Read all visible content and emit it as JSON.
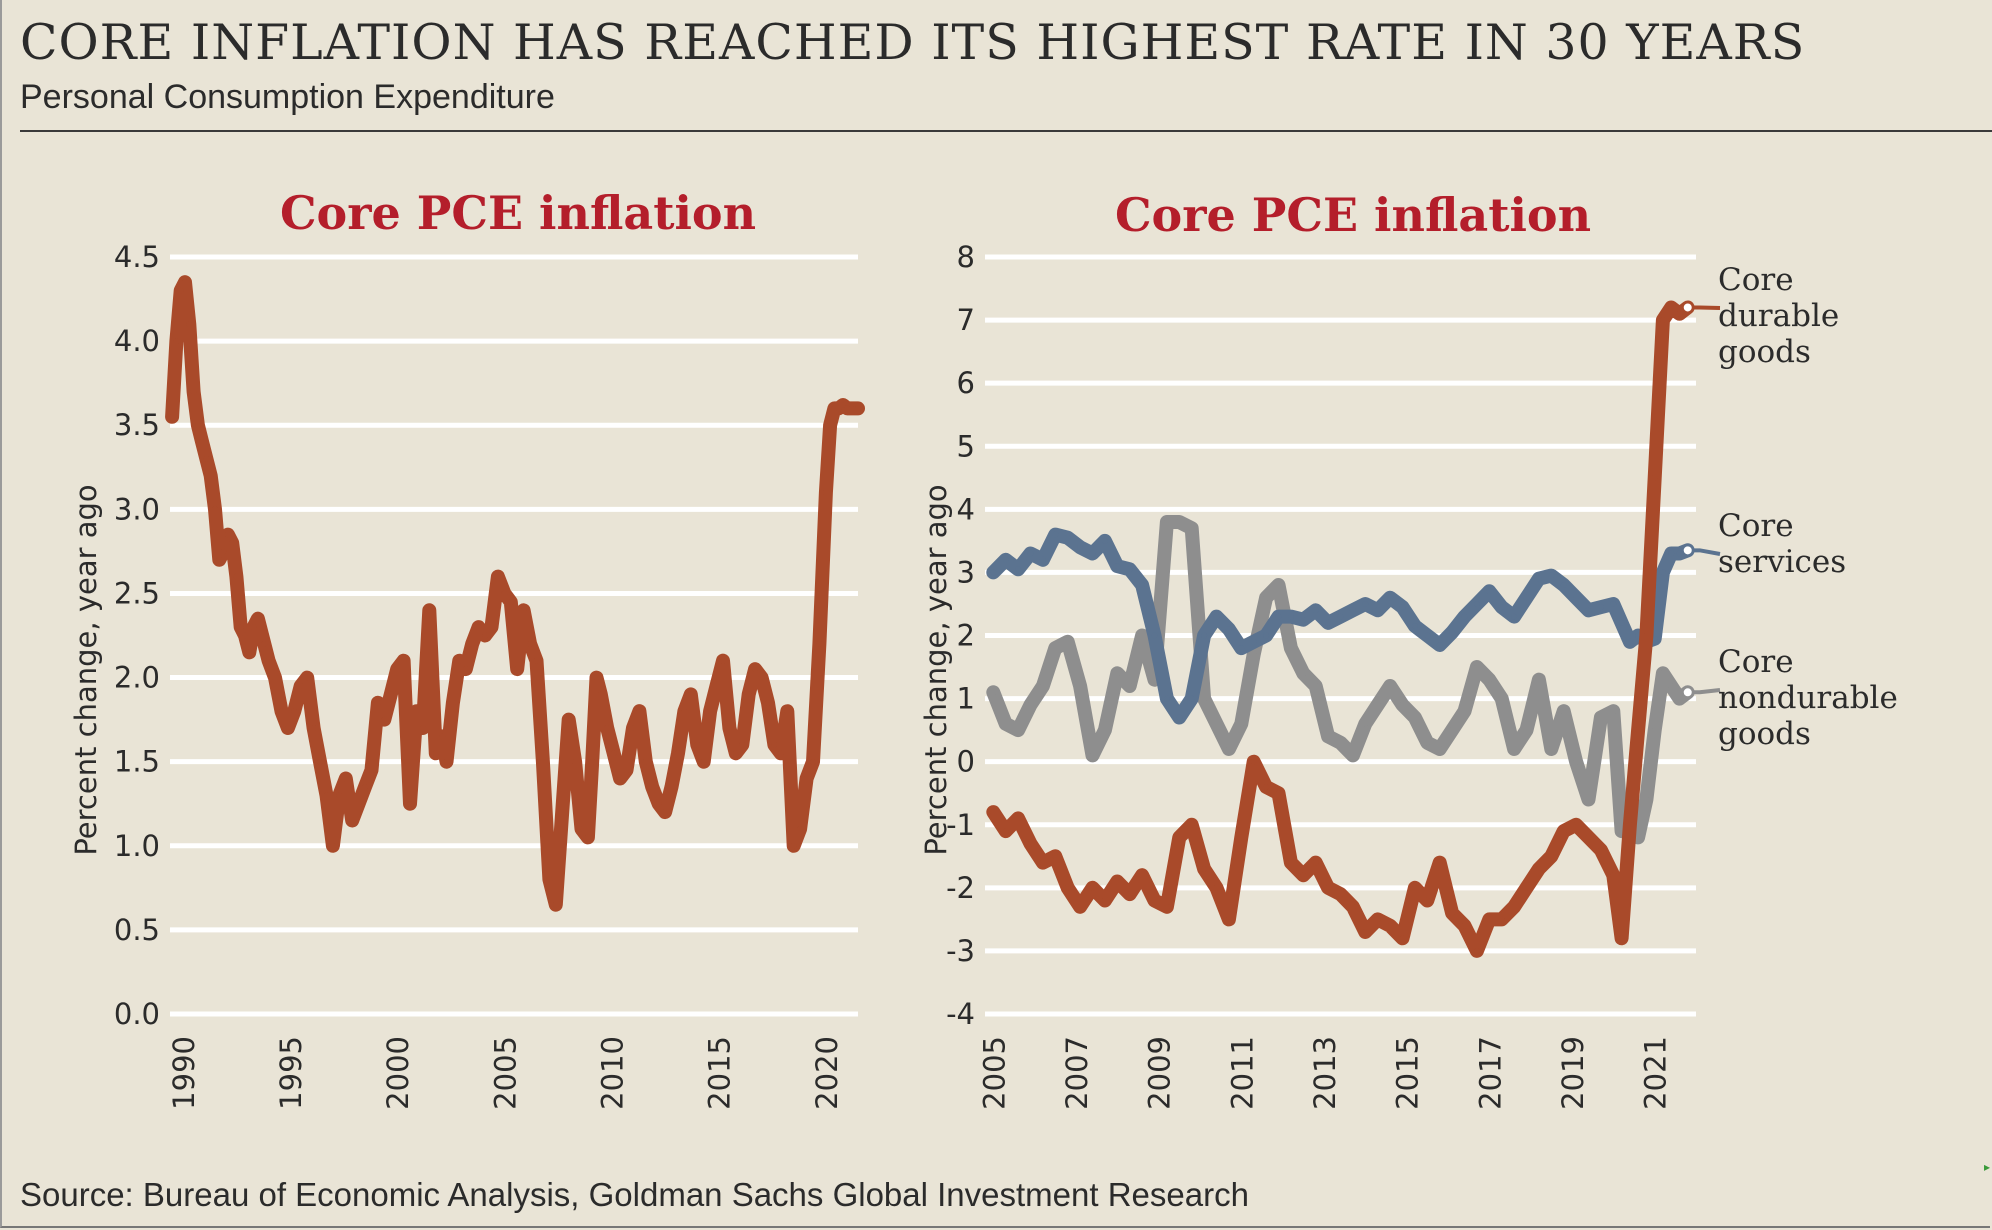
{
  "header": {
    "title": "CORE INFLATION HAS REACHED ITS HIGHEST RATE IN 30 YEARS",
    "subtitle": "Personal Consumption Expenditure"
  },
  "footer": {
    "source": "Source: Bureau of Economic Analysis, Goldman Sachs Global Investment Research"
  },
  "colors": {
    "background": "#e9e4d6",
    "panel_title": "#b41e2b",
    "durable": "#a94a2a",
    "services": "#5b7390",
    "nondurable": "#8e8e8e",
    "gridline": "#ffffff"
  },
  "chart_data": [
    {
      "type": "line",
      "title": "Core PCE inflation",
      "ylabel": "Percent change, year ago",
      "xlabel": "",
      "xlim": [
        1989.4,
        2021.5
      ],
      "ylim": [
        0,
        4.5
      ],
      "yticks": [
        "0.0",
        "0.5",
        "1.0",
        "1.5",
        "2.0",
        "2.5",
        "3.0",
        "3.5",
        "4.0",
        "4.5"
      ],
      "xticks": [
        "1990",
        "1995",
        "2000",
        "2005",
        "2010",
        "2015",
        "2020"
      ],
      "grid": true,
      "series": [
        {
          "name": "Core PCE",
          "color": "#a94a2a",
          "x": [
            1989.5,
            1989.7,
            1989.9,
            1990.1,
            1990.3,
            1990.5,
            1990.7,
            1990.9,
            1991.1,
            1991.3,
            1991.5,
            1991.7,
            1991.9,
            1992.1,
            1992.3,
            1992.5,
            1992.7,
            1992.9,
            1993.1,
            1993.3,
            1993.5,
            1993.8,
            1994.0,
            1994.3,
            1994.6,
            1994.9,
            1995.2,
            1995.5,
            1995.8,
            1996.1,
            1996.4,
            1996.7,
            1997.0,
            1997.3,
            1997.6,
            1997.9,
            1998.2,
            1998.5,
            1998.8,
            1999.1,
            1999.4,
            1999.7,
            2000.0,
            2000.3,
            2000.6,
            2000.9,
            2001.2,
            2001.5,
            2001.8,
            2002.1,
            2002.3,
            2002.6,
            2002.9,
            2003.2,
            2003.5,
            2003.8,
            2004.1,
            2004.4,
            2004.7,
            2005.0,
            2005.3,
            2005.6,
            2005.9,
            2006.2,
            2006.5,
            2006.8,
            2007.1,
            2007.4,
            2007.7,
            2008.0,
            2008.3,
            2008.6,
            2008.9,
            2009.1,
            2009.3,
            2009.5,
            2009.8,
            2010.1,
            2010.4,
            2010.7,
            2011.0,
            2011.3,
            2011.6,
            2011.9,
            2012.2,
            2012.5,
            2012.8,
            2013.1,
            2013.4,
            2013.7,
            2014.0,
            2014.3,
            2014.6,
            2014.9,
            2015.2,
            2015.5,
            2015.8,
            2016.1,
            2016.4,
            2016.7,
            2017.0,
            2017.3,
            2017.6,
            2017.9,
            2018.2,
            2018.5,
            2018.8,
            2019.1,
            2019.4,
            2019.7,
            2020.0,
            2020.2,
            2020.4,
            2020.6,
            2020.8,
            2021.0,
            2021.2,
            2021.4,
            2021.5
          ],
          "values": [
            3.55,
            4.0,
            4.3,
            4.35,
            4.1,
            3.7,
            3.5,
            3.4,
            3.3,
            3.2,
            3.0,
            2.7,
            2.75,
            2.85,
            2.8,
            2.6,
            2.3,
            2.25,
            2.15,
            2.3,
            2.35,
            2.2,
            2.1,
            2.0,
            1.8,
            1.7,
            1.8,
            1.95,
            2.0,
            1.7,
            1.5,
            1.3,
            1.0,
            1.3,
            1.4,
            1.15,
            1.25,
            1.35,
            1.45,
            1.85,
            1.75,
            1.9,
            2.05,
            2.1,
            1.25,
            1.8,
            1.7,
            2.4,
            1.55,
            1.65,
            1.5,
            1.85,
            2.1,
            2.05,
            2.2,
            2.3,
            2.25,
            2.3,
            2.6,
            2.5,
            2.45,
            2.05,
            2.4,
            2.2,
            2.1,
            1.5,
            0.8,
            0.65,
            1.2,
            1.75,
            1.5,
            1.1,
            1.05,
            1.5,
            2.0,
            1.9,
            1.7,
            1.55,
            1.4,
            1.45,
            1.7,
            1.8,
            1.5,
            1.35,
            1.25,
            1.2,
            1.35,
            1.55,
            1.8,
            1.9,
            1.6,
            1.5,
            1.8,
            1.95,
            2.1,
            1.7,
            1.55,
            1.6,
            1.9,
            2.05,
            2.0,
            1.85,
            1.6,
            1.55,
            1.8,
            1.0,
            1.1,
            1.4,
            1.5,
            2.2,
            3.1,
            3.5,
            3.6,
            3.6,
            3.62,
            3.6,
            3.6,
            3.6,
            3.6
          ],
          "values_note": "approximate readings"
        }
      ]
    },
    {
      "type": "line",
      "title": "Core PCE inflation",
      "ylabel": "Percent change, year ago",
      "xlabel": "",
      "xlim": [
        2004.8,
        2022.0
      ],
      "ylim": [
        -4,
        8
      ],
      "yticks": [
        "-4",
        "-3",
        "-2",
        "-1",
        "0",
        "1",
        "2",
        "3",
        "4",
        "5",
        "6",
        "7",
        "8"
      ],
      "xticks": [
        "2005",
        "2007",
        "2009",
        "2011",
        "2013",
        "2015",
        "2017",
        "2019",
        "2021"
      ],
      "grid": true,
      "series": [
        {
          "name": "Core durable goods",
          "legend": [
            "Core",
            "durable",
            "goods"
          ],
          "color": "#a94a2a",
          "x": [
            2005.0,
            2005.3,
            2005.6,
            2005.9,
            2006.2,
            2006.5,
            2006.8,
            2007.1,
            2007.4,
            2007.7,
            2008.0,
            2008.3,
            2008.6,
            2008.9,
            2009.2,
            2009.5,
            2009.8,
            2010.1,
            2010.4,
            2010.7,
            2011.0,
            2011.3,
            2011.6,
            2011.9,
            2012.2,
            2012.5,
            2012.8,
            2013.1,
            2013.4,
            2013.7,
            2014.0,
            2014.3,
            2014.6,
            2014.9,
            2015.2,
            2015.5,
            2015.8,
            2016.1,
            2016.4,
            2016.7,
            2017.0,
            2017.3,
            2017.6,
            2017.9,
            2018.2,
            2018.5,
            2018.8,
            2019.1,
            2019.4,
            2019.7,
            2020.0,
            2020.2,
            2020.4,
            2020.6,
            2020.8,
            2021.0,
            2021.2,
            2021.4,
            2021.6,
            2021.8
          ],
          "values": [
            -0.8,
            -1.1,
            -0.9,
            -1.3,
            -1.6,
            -1.5,
            -2.0,
            -2.3,
            -2.0,
            -2.2,
            -1.9,
            -2.1,
            -1.8,
            -2.2,
            -2.3,
            -1.2,
            -1.0,
            -1.7,
            -2.0,
            -2.5,
            -1.2,
            0.0,
            -0.4,
            -0.5,
            -1.6,
            -1.8,
            -1.6,
            -2.0,
            -2.1,
            -2.3,
            -2.7,
            -2.5,
            -2.6,
            -2.8,
            -2.0,
            -2.2,
            -1.6,
            -2.4,
            -2.6,
            -3.0,
            -2.5,
            -2.5,
            -2.3,
            -2.0,
            -1.7,
            -1.5,
            -1.1,
            -1.0,
            -1.2,
            -1.4,
            -1.8,
            -2.8,
            -1.0,
            0.5,
            2.0,
            4.5,
            7.0,
            7.2,
            7.1,
            7.2
          ],
          "values_note": "approximate readings"
        },
        {
          "name": "Core services",
          "legend": [
            "Core",
            "services"
          ],
          "color": "#5b7390",
          "x": [
            2005.0,
            2005.3,
            2005.6,
            2005.9,
            2006.2,
            2006.5,
            2006.8,
            2007.1,
            2007.4,
            2007.7,
            2008.0,
            2008.3,
            2008.6,
            2008.9,
            2009.2,
            2009.5,
            2009.8,
            2010.1,
            2010.4,
            2010.7,
            2011.0,
            2011.3,
            2011.6,
            2011.9,
            2012.2,
            2012.5,
            2012.8,
            2013.1,
            2013.4,
            2013.7,
            2014.0,
            2014.3,
            2014.6,
            2014.9,
            2015.2,
            2015.5,
            2015.8,
            2016.1,
            2016.4,
            2016.7,
            2017.0,
            2017.3,
            2017.6,
            2017.9,
            2018.2,
            2018.5,
            2018.8,
            2019.1,
            2019.4,
            2019.7,
            2020.0,
            2020.2,
            2020.4,
            2020.6,
            2020.8,
            2021.0,
            2021.2,
            2021.4,
            2021.6,
            2021.8
          ],
          "values": [
            3.0,
            3.2,
            3.05,
            3.3,
            3.2,
            3.6,
            3.55,
            3.4,
            3.3,
            3.5,
            3.1,
            3.05,
            2.8,
            2.0,
            1.0,
            0.7,
            1.0,
            2.0,
            2.3,
            2.1,
            1.8,
            1.9,
            2.0,
            2.3,
            2.3,
            2.25,
            2.4,
            2.2,
            2.3,
            2.4,
            2.5,
            2.4,
            2.6,
            2.45,
            2.15,
            2.0,
            1.85,
            2.05,
            2.3,
            2.5,
            2.7,
            2.45,
            2.3,
            2.6,
            2.9,
            2.95,
            2.8,
            2.6,
            2.4,
            2.45,
            2.5,
            2.2,
            1.9,
            2.0,
            1.9,
            1.95,
            3.0,
            3.3,
            3.3,
            3.35
          ],
          "values_note": "approximate readings"
        },
        {
          "name": "Core nondurable goods",
          "legend": [
            "Core",
            "nondurable",
            "goods"
          ],
          "color": "#8e8e8e",
          "x": [
            2005.0,
            2005.3,
            2005.6,
            2005.9,
            2006.2,
            2006.5,
            2006.8,
            2007.1,
            2007.4,
            2007.7,
            2008.0,
            2008.3,
            2008.6,
            2008.9,
            2009.2,
            2009.5,
            2009.8,
            2010.1,
            2010.4,
            2010.7,
            2011.0,
            2011.3,
            2011.6,
            2011.9,
            2012.2,
            2012.5,
            2012.8,
            2013.1,
            2013.4,
            2013.7,
            2014.0,
            2014.3,
            2014.6,
            2014.9,
            2015.2,
            2015.5,
            2015.8,
            2016.1,
            2016.4,
            2016.7,
            2017.0,
            2017.3,
            2017.6,
            2017.9,
            2018.2,
            2018.5,
            2018.8,
            2019.1,
            2019.4,
            2019.7,
            2020.0,
            2020.2,
            2020.4,
            2020.6,
            2020.8,
            2021.0,
            2021.2,
            2021.4,
            2021.6,
            2021.8
          ],
          "values": [
            1.1,
            0.6,
            0.5,
            0.9,
            1.2,
            1.8,
            1.9,
            1.2,
            0.1,
            0.5,
            1.4,
            1.2,
            2.0,
            1.3,
            3.8,
            3.8,
            3.7,
            1.0,
            0.6,
            0.2,
            0.6,
            1.7,
            2.6,
            2.8,
            1.8,
            1.4,
            1.2,
            0.4,
            0.3,
            0.1,
            0.6,
            0.9,
            1.2,
            0.9,
            0.7,
            0.3,
            0.2,
            0.5,
            0.8,
            1.5,
            1.3,
            1.0,
            0.2,
            0.5,
            1.3,
            0.2,
            0.8,
            0.0,
            -0.6,
            0.7,
            0.8,
            -1.1,
            -1.0,
            -1.2,
            -0.6,
            0.5,
            1.4,
            1.2,
            1.0,
            1.1
          ],
          "values_note": "approximate readings"
        }
      ]
    }
  ]
}
